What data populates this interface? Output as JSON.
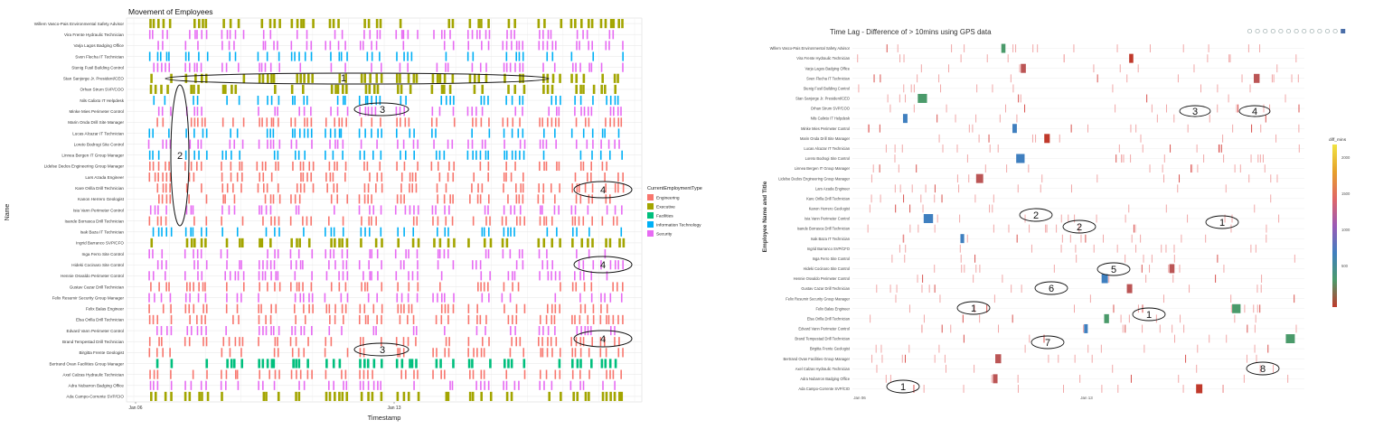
{
  "chart_data": [
    {
      "type": "scatter",
      "title": "Movement of Employees",
      "xlabel": "Timestamp",
      "ylabel": "Name",
      "x_ticks": [
        "Jan 06",
        "Jan 13"
      ],
      "legend": {
        "title": "CurrentEmploymentType",
        "placement": "right",
        "entries": [
          {
            "label": "Engineering",
            "color": "#f8766d"
          },
          {
            "label": "Executive",
            "color": "#a3a500"
          },
          {
            "label": "Facilities",
            "color": "#00bf7d"
          },
          {
            "label": "Information Technology",
            "color": "#00b0f6"
          },
          {
            "label": "Security",
            "color": "#e76bf3"
          }
        ]
      },
      "rows": [
        {
          "name": "Willem Vasco-Pais Environmental Safety Advisor",
          "type": "Executive"
        },
        {
          "name": "Vira Frente Hydraulic Technician",
          "type": "Security"
        },
        {
          "name": "Varja Lagos Badging Office",
          "type": "Security"
        },
        {
          "name": "Sven Flecha IT Technician",
          "type": "Information Technology"
        },
        {
          "name": "Stenig Fusil Building Control",
          "type": "Security"
        },
        {
          "name": "Stan Sanjorge Jr. President/CEO",
          "type": "Executive"
        },
        {
          "name": "Orhan Strum SVP/COO",
          "type": "Executive"
        },
        {
          "name": "Nils Calixto IT Helpdesk",
          "type": "Information Technology"
        },
        {
          "name": "Minke Mies Perimeter Control",
          "type": "Security"
        },
        {
          "name": "Marin Onda Drill Site Manager",
          "type": "Engineering"
        },
        {
          "name": "Lucas Alcazar IT Technician",
          "type": "Information Technology"
        },
        {
          "name": "Loreto Bodrogi Site Control",
          "type": "Security"
        },
        {
          "name": "Linnea Bergen IT Group Manager",
          "type": "Information Technology"
        },
        {
          "name": "Lidelse Dedos Engineering Group Manager",
          "type": "Engineering"
        },
        {
          "name": "Lars Azada Engineer",
          "type": "Engineering"
        },
        {
          "name": "Kare Orilla Drill Technician",
          "type": "Engineering"
        },
        {
          "name": "Kanon Herrero Geologist",
          "type": "Engineering"
        },
        {
          "name": "Isia Vann Perimeter Control",
          "type": "Security"
        },
        {
          "name": "Isande Borrasca Drill Technician",
          "type": "Engineering"
        },
        {
          "name": "Isak Baza IT Technician",
          "type": "Information Technology"
        },
        {
          "name": "Ingrid Barranco SVP/CFO",
          "type": "Executive"
        },
        {
          "name": "Inga Ferro Site Control",
          "type": "Security"
        },
        {
          "name": "Hideki Cocinaro Site Control",
          "type": "Security"
        },
        {
          "name": "Hennie Osvaldo Perimeter Control",
          "type": "Security"
        },
        {
          "name": "Gustav Cazar Drill Technician",
          "type": "Engineering"
        },
        {
          "name": "Felix Resumir Security Group Manager",
          "type": "Security"
        },
        {
          "name": "Felix Balas Engineer",
          "type": "Engineering"
        },
        {
          "name": "Elsa Orilla Drill Technician",
          "type": "Engineering"
        },
        {
          "name": "Edvard Vann Perimeter Control",
          "type": "Security"
        },
        {
          "name": "Brand Tempestad Drill Technician",
          "type": "Engineering"
        },
        {
          "name": "Birgitta Frente Geologist",
          "type": "Engineering"
        },
        {
          "name": "Bertrand Ovan Facilities Group Manager",
          "type": "Facilities"
        },
        {
          "name": "Axel Calzas Hydraulic Technician",
          "type": "Engineering"
        },
        {
          "name": "Adra Nubarron Badging Office",
          "type": "Security"
        },
        {
          "name": "Ada Campo-Corrente SVP/CIO",
          "type": "Executive"
        }
      ],
      "annotations": [
        {
          "label": "1"
        },
        {
          "label": "2"
        },
        {
          "label": "3"
        },
        {
          "label": "3"
        },
        {
          "label": "4"
        },
        {
          "label": "4"
        },
        {
          "label": "4"
        }
      ]
    },
    {
      "type": "heatmap",
      "title": "Time Lag - Difference of > 10mins using GPS data",
      "xlabel": "",
      "ylabel": "Employee Name and Title",
      "x_ticks": [
        "Jan 06",
        "Jan 13"
      ],
      "colorbar": {
        "title": "diff_mins",
        "ticks": [
          "2000",
          "1500",
          "1000",
          "500"
        ],
        "colors": [
          "#f0e442",
          "#e6a02a",
          "#e06666",
          "#9b59b6",
          "#3f7fbf",
          "#4a9a6a",
          "#c0392b"
        ]
      },
      "rows": [
        "Willem Vasco-Pais Environmental Safety Advisor",
        "Vira Frente Hydraulic Technician",
        "Varja Lagos Badging Office",
        "Sven Flecha IT Technician",
        "Stenig Fusil Building Control",
        "Stan Sanjorge Jr. President/CEO",
        "Orhan Strum SVP/COO",
        "Nils Calixto IT Helpdesk",
        "Minke Mies Perimeter Control",
        "Marin Onda Drill Site Manager",
        "Lucas Alcazar IT Technician",
        "Loreto Bodrogi Site Control",
        "Linnea Bergen IT Group Manager",
        "Lidelse Dedos Engineering Group Manager",
        "Lars Azada Engineer",
        "Kare Orilla Drill Technician",
        "Kanon Herrero Geologist",
        "Isia Vann Perimeter Control",
        "Isande Borrasca Drill Technician",
        "Isak Baza IT Technician",
        "Ingrid Barranco SVP/CFO",
        "Inga Ferro Site Control",
        "Hideki Cocinaro Site Control",
        "Hennie Osvaldo Perimeter Control",
        "Gustav Cazar Drill Technician",
        "Felix Resumir Security Group Manager",
        "Felix Balas Engineer",
        "Elsa Orilla Drill Technician",
        "Edvard Vann Perimeter Control",
        "Brand Tempestad Drill Technician",
        "Birgitta Frente Geologist",
        "Bertrand Ovan Facilities Group Manager",
        "Axel Calzas Hydraulic Technician",
        "Adra Nubarron Badging Office",
        "Ada Campo-Corrente SVP/CIO"
      ],
      "annotations": [
        {
          "label": "3"
        },
        {
          "label": "4"
        },
        {
          "label": "2"
        },
        {
          "label": "2"
        },
        {
          "label": "1"
        },
        {
          "label": "5"
        },
        {
          "label": "6"
        },
        {
          "label": "1"
        },
        {
          "label": "1"
        },
        {
          "label": "7"
        },
        {
          "label": "8"
        },
        {
          "label": "1"
        }
      ]
    }
  ],
  "colors": {
    "Engineering": "#f8766d",
    "Executive": "#a3a500",
    "Facilities": "#00bf7d",
    "Information Technology": "#00b0f6",
    "Security": "#e76bf3"
  },
  "toolbar": {
    "icons": [
      "camera-icon",
      "zoom-icon",
      "pan-icon",
      "box-select-icon",
      "lasso-icon",
      "zoom-in-icon",
      "zoom-out-icon",
      "autoscale-icon",
      "reset-icon",
      "spike-icon",
      "hover-closest-icon",
      "hover-compare-icon",
      "plotly-logo-icon"
    ]
  }
}
